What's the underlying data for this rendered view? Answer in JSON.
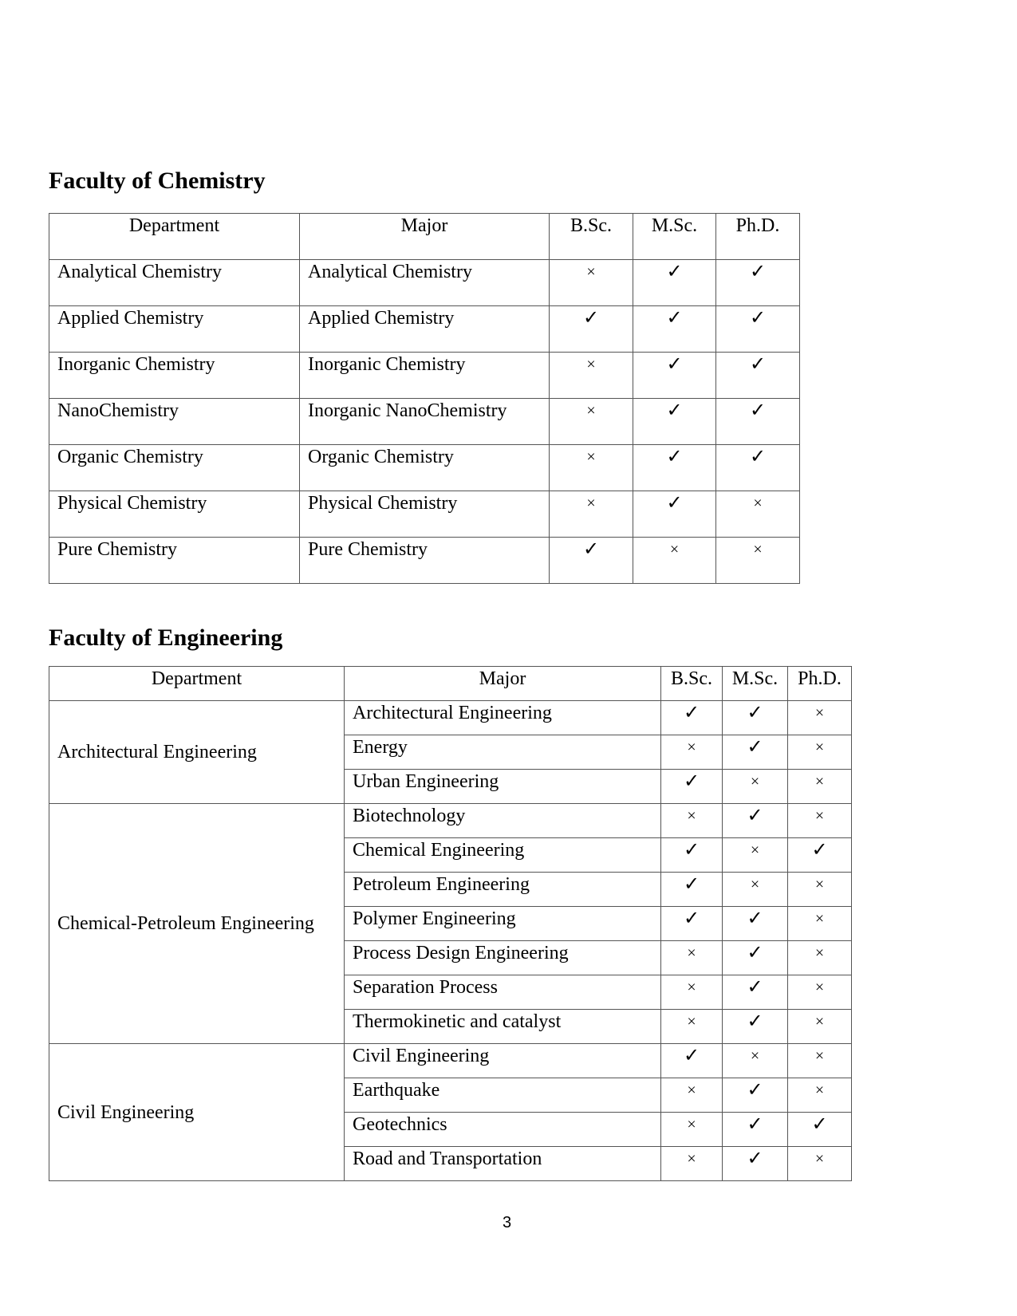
{
  "chemistry": {
    "title": "Faculty of Chemistry",
    "headers": [
      "Department",
      "Major",
      "B.Sc.",
      "M.Sc.",
      "Ph.D."
    ],
    "rows": [
      {
        "department": "Analytical Chemistry",
        "major": "Analytical Chemistry",
        "marks": [
          "×",
          "✓",
          "✓"
        ]
      },
      {
        "department": "Applied Chemistry",
        "major": "Applied Chemistry",
        "marks": [
          "✓",
          "✓",
          "✓"
        ]
      },
      {
        "department": "Inorganic Chemistry",
        "major": "Inorganic Chemistry",
        "marks": [
          "×",
          "✓",
          "✓"
        ]
      },
      {
        "department": "NanoChemistry",
        "major": "Inorganic NanoChemistry",
        "marks": [
          "×",
          "✓",
          "✓"
        ]
      },
      {
        "department": "Organic Chemistry",
        "major": "Organic Chemistry",
        "marks": [
          "×",
          "✓",
          "✓"
        ]
      },
      {
        "department": "Physical Chemistry",
        "major": "Physical Chemistry",
        "marks": [
          "×",
          "✓",
          "×"
        ]
      },
      {
        "department": "Pure Chemistry",
        "major": "Pure Chemistry",
        "marks": [
          "✓",
          "×",
          "×"
        ]
      }
    ]
  },
  "engineering": {
    "title": "Faculty of Engineering",
    "headers": [
      "Department",
      "Major",
      "B.Sc.",
      "M.Sc.",
      "Ph.D."
    ],
    "groups": [
      {
        "department": "Architectural Engineering",
        "majors": [
          {
            "major": "Architectural Engineering",
            "marks": [
              "✓",
              "✓",
              "×"
            ]
          },
          {
            "major": "Energy",
            "marks": [
              "×",
              "✓",
              "×"
            ]
          },
          {
            "major": "Urban Engineering",
            "marks": [
              "✓",
              "×",
              "×"
            ]
          }
        ]
      },
      {
        "department": "Chemical-Petroleum Engineering",
        "majors": [
          {
            "major": "Biotechnology",
            "marks": [
              "×",
              "✓",
              "×"
            ]
          },
          {
            "major": "Chemical Engineering",
            "marks": [
              "✓",
              "×",
              "✓"
            ]
          },
          {
            "major": "Petroleum Engineering",
            "marks": [
              "✓",
              "×",
              "×"
            ]
          },
          {
            "major": "Polymer Engineering",
            "marks": [
              "✓",
              "✓",
              "×"
            ]
          },
          {
            "major": "Process Design Engineering",
            "marks": [
              "×",
              "✓",
              "×"
            ]
          },
          {
            "major": "Separation Process",
            "marks": [
              "×",
              "✓",
              "×"
            ]
          },
          {
            "major": "Thermokinetic and catalyst",
            "marks": [
              "×",
              "✓",
              "×"
            ]
          }
        ]
      },
      {
        "department": "Civil Engineering",
        "majors": [
          {
            "major": "Civil Engineering",
            "marks": [
              "✓",
              "×",
              "×"
            ]
          },
          {
            "major": "Earthquake",
            "marks": [
              "×",
              "✓",
              "×"
            ]
          },
          {
            "major": "Geotechnics",
            "marks": [
              "×",
              "✓",
              "✓"
            ]
          },
          {
            "major": "Road and Transportation",
            "marks": [
              "×",
              "✓",
              "×"
            ]
          }
        ]
      }
    ]
  },
  "page_number": "3"
}
